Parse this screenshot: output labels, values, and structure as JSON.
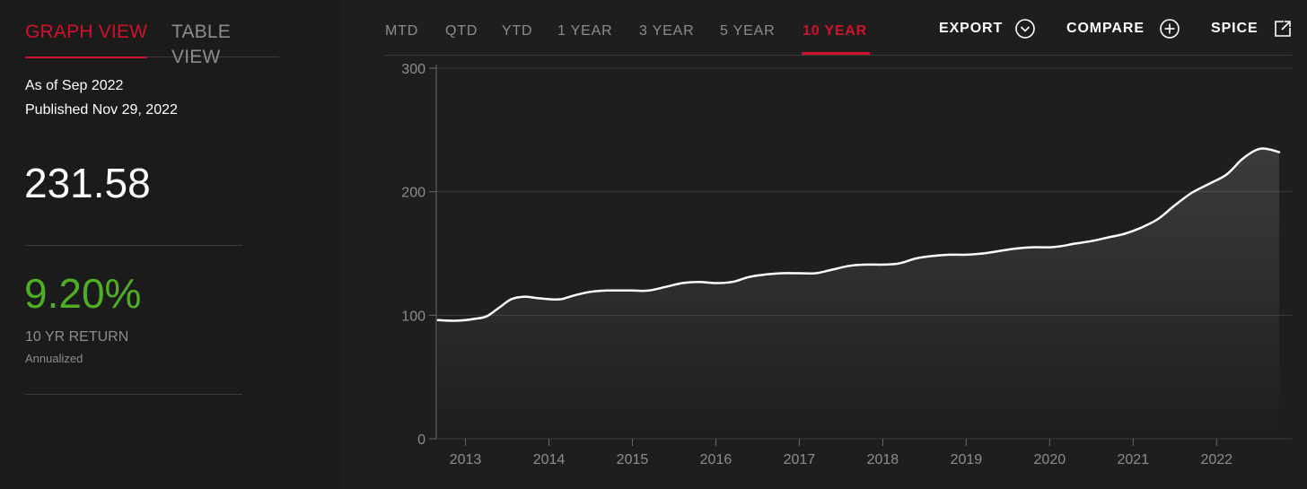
{
  "view_tabs": {
    "graph": "GRAPH VIEW",
    "table": "TABLE VIEW"
  },
  "summary": {
    "as_of": "As of Sep 2022",
    "published": "Published Nov 29, 2022",
    "value": "231.58",
    "return_value": "9.20%",
    "return_label": "10 YR RETURN",
    "return_sub": "Annualized"
  },
  "range_tabs": [
    "MTD",
    "QTD",
    "YTD",
    "1 YEAR",
    "3 YEAR",
    "5 YEAR",
    "10 YEAR"
  ],
  "active_range": "10 YEAR",
  "actions": {
    "export": "EXPORT",
    "compare": "COMPARE",
    "spice": "SPICE"
  },
  "icons": {
    "export": "chevron-down-circle-icon",
    "compare": "plus-circle-icon",
    "spice": "external-link-icon"
  },
  "colors": {
    "accent": "#d0112b",
    "positive": "#4fae23",
    "line": "#ffffff",
    "background": "#1e1e1e",
    "sidebar": "#1b1b1b",
    "muted": "#8d8d8d"
  },
  "chart_data": {
    "type": "area",
    "x_tick_labels": [
      "2013",
      "2014",
      "2015",
      "2016",
      "2017",
      "2018",
      "2019",
      "2020",
      "2021",
      "2022"
    ],
    "y_ticks": [
      0,
      100,
      200,
      300
    ],
    "ylim": [
      0,
      300
    ],
    "xlim": [
      2012.65,
      2022.75
    ],
    "grid": true,
    "series": [
      {
        "x": [
          2012.67,
          2012.85,
          2013.0,
          2013.1,
          2013.25,
          2013.4,
          2013.55,
          2013.7,
          2013.85,
          2014.0,
          2014.15,
          2014.3,
          2014.5,
          2014.7,
          2014.85,
          2015.0,
          2015.2,
          2015.4,
          2015.6,
          2015.8,
          2016.0,
          2016.2,
          2016.4,
          2016.6,
          2016.8,
          2017.0,
          2017.2,
          2017.4,
          2017.6,
          2017.8,
          2018.0,
          2018.2,
          2018.4,
          2018.6,
          2018.8,
          2019.0,
          2019.2,
          2019.4,
          2019.6,
          2019.8,
          2020.0,
          2020.15,
          2020.3,
          2020.5,
          2020.7,
          2020.9,
          2021.1,
          2021.3,
          2021.5,
          2021.7,
          2021.9,
          2022.1,
          2022.2,
          2022.3,
          2022.45,
          2022.55,
          2022.65,
          2022.75
        ],
        "y": [
          96,
          95.5,
          96,
          97,
          99,
          106,
          113,
          115,
          114,
          113,
          113,
          116,
          119,
          120,
          120,
          120,
          120,
          123,
          126,
          127,
          126,
          127,
          131,
          133,
          134,
          134,
          134,
          137,
          140,
          141,
          141,
          142,
          146,
          148,
          149,
          149,
          150,
          152,
          154,
          155,
          155,
          156,
          158,
          160,
          163,
          166,
          171,
          178,
          189,
          199,
          206,
          213,
          219,
          226,
          233,
          235,
          234,
          232
        ]
      }
    ]
  }
}
